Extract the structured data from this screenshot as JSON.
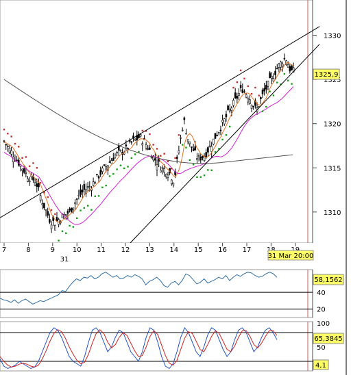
{
  "chart_data": [
    {
      "type": "candlestick",
      "x_ticks": [
        "7",
        "8",
        "9",
        "10",
        "11",
        "12",
        "13",
        "14",
        "15",
        "16",
        "17",
        "18",
        "19"
      ],
      "date_marker": "31",
      "y_ticks": [
        1310,
        1315,
        1320,
        1325,
        1330
      ],
      "ylim": [
        1306.5,
        1334
      ],
      "last_price_label": "1325,9",
      "time_label": "31 Mar 20:00",
      "series": [
        {
          "key": "price"
        },
        {
          "key": "ma_fast",
          "color": "#e07020"
        },
        {
          "key": "ma_mid",
          "color": "#d020d0"
        },
        {
          "key": "ma_slow",
          "color": "#505050"
        },
        {
          "key": "parabolic_sar_up",
          "color": "#10a010"
        },
        {
          "key": "parabolic_sar_down",
          "color": "#c03030"
        }
      ]
    },
    {
      "type": "line",
      "indicator": "RSI",
      "y_ticks": [
        20,
        40
      ],
      "ylim": [
        10,
        67
      ],
      "last_value_label": "58,1562",
      "color": "#2e6da4",
      "values": [
        33,
        31,
        30,
        28,
        31,
        27,
        30,
        32,
        29,
        26,
        28,
        30,
        29,
        31,
        33,
        35,
        37,
        42,
        41,
        47,
        52,
        56,
        54,
        58,
        57,
        60,
        56,
        58,
        62,
        64,
        61,
        58,
        60,
        56,
        57,
        60,
        58,
        61,
        59,
        56,
        49,
        53,
        55,
        58,
        54,
        48,
        46,
        51,
        53,
        49,
        54,
        62,
        60,
        55,
        50,
        52,
        56,
        51,
        53,
        55,
        58,
        56,
        60,
        54,
        58,
        61,
        59,
        62,
        64,
        63,
        60,
        58,
        59,
        62,
        64,
        62,
        58
      ]
    },
    {
      "type": "line",
      "indicator": "Stochastic",
      "y_ticks": [
        50,
        100
      ],
      "ylim": [
        0,
        100
      ],
      "last_value_label": "65,3845",
      "low_value_label": "4,1",
      "series": [
        {
          "key": "k",
          "color": "#2050c0",
          "values": [
            25,
            10,
            5,
            8,
            12,
            20,
            15,
            10,
            5,
            8,
            20,
            40,
            60,
            80,
            90,
            85,
            70,
            50,
            30,
            20,
            15,
            10,
            30,
            60,
            85,
            90,
            80,
            60,
            40,
            50,
            70,
            85,
            80,
            60,
            40,
            30,
            20,
            40,
            70,
            90,
            85,
            60,
            30,
            10,
            5,
            15,
            40,
            70,
            90,
            80,
            60,
            40,
            30,
            50,
            75,
            90,
            85,
            65,
            45,
            30,
            40,
            65,
            85,
            90,
            80,
            60,
            40,
            50,
            70,
            85,
            90,
            80,
            65
          ]
        },
        {
          "key": "d",
          "color": "#d02020",
          "values": [
            30,
            20,
            12,
            8,
            10,
            14,
            16,
            14,
            10,
            8,
            12,
            25,
            42,
            62,
            78,
            86,
            82,
            68,
            50,
            35,
            22,
            15,
            18,
            35,
            58,
            78,
            86,
            78,
            60,
            48,
            55,
            70,
            80,
            74,
            58,
            42,
            30,
            32,
            50,
            72,
            84,
            76,
            54,
            32,
            16,
            12,
            22,
            45,
            68,
            82,
            78,
            62,
            45,
            40,
            55,
            72,
            84,
            78,
            62,
            45,
            40,
            52,
            70,
            84,
            84,
            72,
            55,
            48,
            58,
            72,
            84,
            84,
            74
          ]
        }
      ]
    }
  ]
}
